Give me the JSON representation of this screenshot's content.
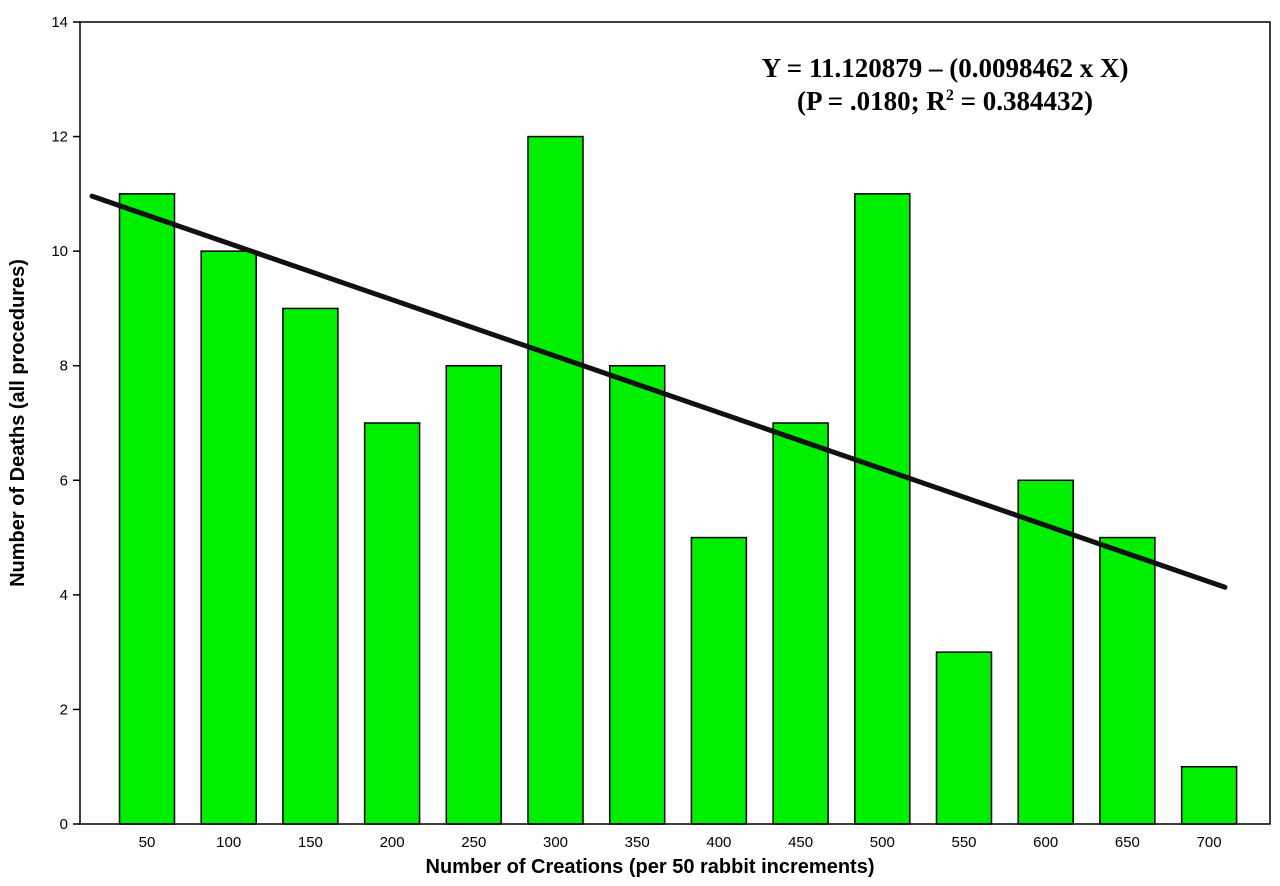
{
  "chart_data": {
    "type": "bar",
    "categories": [
      "50",
      "100",
      "150",
      "200",
      "250",
      "300",
      "350",
      "400",
      "450",
      "500",
      "550",
      "600",
      "650",
      "700"
    ],
    "values": [
      11,
      10,
      9,
      7,
      8,
      12,
      8,
      5,
      7,
      11,
      3,
      6,
      5,
      1
    ],
    "xlabel": "Number of Creations (per 50 rabbit increments)",
    "ylabel": "Number of Deaths (all procedures)",
    "ylim": [
      0,
      14
    ],
    "yticks": [
      0,
      2,
      4,
      6,
      8,
      10,
      12,
      14
    ],
    "grid": false,
    "bar_color": "#00ee00",
    "trendline": {
      "slope": -0.0098462,
      "intercept": 11.120879,
      "color": "#111111"
    },
    "annotations": {
      "equation": "Y = 11.120879 – (0.0098462 x X)",
      "stats_prefix": "(P = .0180; R",
      "stats_sup": "2",
      "stats_suffix": " = 0.384432)"
    }
  }
}
